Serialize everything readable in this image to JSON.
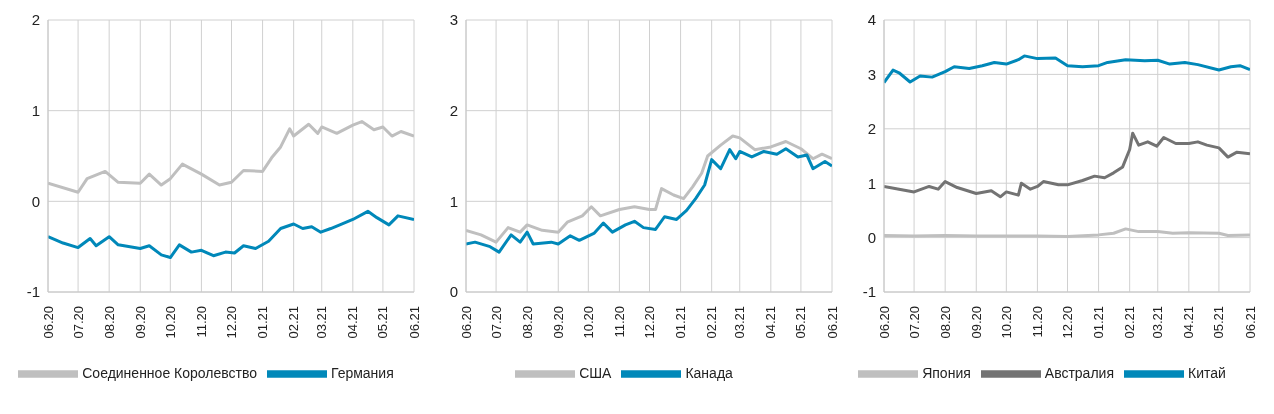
{
  "chart_data": [
    {
      "type": "line",
      "xlim": [
        "2020-06",
        "2021-06"
      ],
      "xticks": [
        {
          "value": "2020-06",
          "label": "06.20"
        },
        {
          "value": "2020-07",
          "label": "07.20"
        },
        {
          "value": "2020-08",
          "label": "08.20"
        },
        {
          "value": "2020-09",
          "label": "09.20"
        },
        {
          "value": "2020-10",
          "label": "10.20"
        },
        {
          "value": "2020-11",
          "label": "11.20"
        },
        {
          "value": "2020-12",
          "label": "12.20"
        },
        {
          "value": "2021-01",
          "label": "01.21"
        },
        {
          "value": "2021-02",
          "label": "02.21"
        },
        {
          "value": "2021-03",
          "label": "03.21"
        },
        {
          "value": "2021-04",
          "label": "04.21"
        },
        {
          "value": "2021-05",
          "label": "05.21"
        },
        {
          "value": "2021-06",
          "label": "06.21"
        }
      ],
      "ylim": [
        -1,
        2
      ],
      "yticks": [
        -1,
        0,
        1,
        2
      ],
      "grid": true,
      "legend": "bottom",
      "line_style": "solid",
      "series": [
        {
          "name": "Соединенное Королевство",
          "color": "#bfbfbf",
          "x": [
            "2020-06-01",
            "2020-07-01",
            "2020-07-10",
            "2020-07-28",
            "2020-08-10",
            "2020-09-01",
            "2020-09-10",
            "2020-09-22",
            "2020-10-01",
            "2020-10-13",
            "2020-11-01",
            "2020-11-19",
            "2020-12-01",
            "2020-12-13",
            "2021-01-01",
            "2021-01-10",
            "2021-01-19",
            "2021-01-28",
            "2021-02-01",
            "2021-02-16",
            "2021-02-25",
            "2021-03-01",
            "2021-03-16",
            "2021-04-01",
            "2021-04-10",
            "2021-04-22",
            "2021-05-01",
            "2021-05-10",
            "2021-05-19",
            "2021-06-01"
          ],
          "values": [
            0.2,
            0.1,
            0.25,
            0.33,
            0.21,
            0.2,
            0.3,
            0.18,
            0.25,
            0.41,
            0.3,
            0.18,
            0.21,
            0.34,
            0.33,
            0.48,
            0.6,
            0.8,
            0.72,
            0.85,
            0.75,
            0.82,
            0.75,
            0.84,
            0.88,
            0.79,
            0.82,
            0.72,
            0.77,
            0.72
          ]
        },
        {
          "name": "Германия",
          "color": "#0088b9",
          "x": [
            "2020-06-01",
            "2020-06-16",
            "2020-07-01",
            "2020-07-13",
            "2020-07-19",
            "2020-08-01",
            "2020-08-10",
            "2020-09-01",
            "2020-09-10",
            "2020-09-22",
            "2020-10-01",
            "2020-10-10",
            "2020-10-22",
            "2020-11-01",
            "2020-11-13",
            "2020-11-25",
            "2020-12-04",
            "2020-12-13",
            "2020-12-25",
            "2021-01-07",
            "2021-01-19",
            "2021-02-01",
            "2021-02-10",
            "2021-02-19",
            "2021-02-28",
            "2021-03-10",
            "2021-03-19",
            "2021-04-01",
            "2021-04-16",
            "2021-04-25",
            "2021-05-07",
            "2021-05-16",
            "2021-06-01"
          ],
          "values": [
            -0.39,
            -0.46,
            -0.51,
            -0.41,
            -0.49,
            -0.39,
            -0.48,
            -0.52,
            -0.49,
            -0.59,
            -0.62,
            -0.48,
            -0.56,
            -0.54,
            -0.6,
            -0.56,
            -0.57,
            -0.49,
            -0.52,
            -0.44,
            -0.3,
            -0.25,
            -0.3,
            -0.28,
            -0.34,
            -0.3,
            -0.26,
            -0.2,
            -0.11,
            -0.18,
            -0.26,
            -0.16,
            -0.2
          ]
        }
      ]
    },
    {
      "type": "line",
      "xlim": [
        "2020-06",
        "2021-06"
      ],
      "xticks": [
        {
          "value": "2020-06",
          "label": "06.20"
        },
        {
          "value": "2020-07",
          "label": "07.20"
        },
        {
          "value": "2020-08",
          "label": "08.20"
        },
        {
          "value": "2020-09",
          "label": "09.20"
        },
        {
          "value": "2020-10",
          "label": "10.20"
        },
        {
          "value": "2020-11",
          "label": "11.20"
        },
        {
          "value": "2020-12",
          "label": "12.20"
        },
        {
          "value": "2021-01",
          "label": "01.21"
        },
        {
          "value": "2021-02",
          "label": "02.21"
        },
        {
          "value": "2021-03",
          "label": "03.21"
        },
        {
          "value": "2021-04",
          "label": "04.21"
        },
        {
          "value": "2021-05",
          "label": "05.21"
        },
        {
          "value": "2021-06",
          "label": "06.21"
        }
      ],
      "ylim": [
        0,
        3
      ],
      "yticks": [
        0,
        1,
        2,
        3
      ],
      "grid": true,
      "legend": "bottom",
      "line_style": "solid",
      "series": [
        {
          "name": "США",
          "color": "#bfbfbf",
          "x": [
            "2020-06-01",
            "2020-06-16",
            "2020-07-01",
            "2020-07-13",
            "2020-07-25",
            "2020-08-01",
            "2020-08-16",
            "2020-09-01",
            "2020-09-10",
            "2020-09-25",
            "2020-10-04",
            "2020-10-13",
            "2020-11-01",
            "2020-11-16",
            "2020-12-01",
            "2020-12-07",
            "2020-12-13",
            "2020-12-25",
            "2021-01-04",
            "2021-01-13",
            "2021-01-22",
            "2021-01-28",
            "2021-02-10",
            "2021-02-22",
            "2021-03-01",
            "2021-03-16",
            "2021-04-01",
            "2021-04-16",
            "2021-05-01",
            "2021-05-13",
            "2021-05-22",
            "2021-06-01"
          ],
          "values": [
            0.68,
            0.63,
            0.55,
            0.71,
            0.66,
            0.74,
            0.68,
            0.66,
            0.77,
            0.84,
            0.94,
            0.84,
            0.91,
            0.94,
            0.91,
            0.91,
            1.14,
            1.07,
            1.03,
            1.16,
            1.31,
            1.5,
            1.62,
            1.72,
            1.7,
            1.57,
            1.6,
            1.66,
            1.58,
            1.47,
            1.52,
            1.47
          ]
        },
        {
          "name": "Канада",
          "color": "#0088b9",
          "x": [
            "2020-06-01",
            "2020-06-10",
            "2020-06-25",
            "2020-07-04",
            "2020-07-16",
            "2020-07-25",
            "2020-08-01",
            "2020-08-07",
            "2020-08-25",
            "2020-09-01",
            "2020-09-13",
            "2020-09-22",
            "2020-10-07",
            "2020-10-16",
            "2020-10-25",
            "2020-11-07",
            "2020-11-16",
            "2020-11-25",
            "2020-12-07",
            "2020-12-16",
            "2020-12-28",
            "2021-01-07",
            "2021-01-16",
            "2021-01-25",
            "2021-02-01",
            "2021-02-10",
            "2021-02-19",
            "2021-02-25",
            "2021-03-01",
            "2021-03-13",
            "2021-03-25",
            "2021-04-07",
            "2021-04-16",
            "2021-04-28",
            "2021-05-07",
            "2021-05-13",
            "2021-05-25",
            "2021-06-01"
          ],
          "values": [
            0.53,
            0.55,
            0.5,
            0.44,
            0.63,
            0.55,
            0.66,
            0.53,
            0.55,
            0.53,
            0.62,
            0.57,
            0.65,
            0.76,
            0.66,
            0.74,
            0.78,
            0.71,
            0.69,
            0.83,
            0.8,
            0.9,
            1.03,
            1.18,
            1.46,
            1.36,
            1.57,
            1.47,
            1.55,
            1.49,
            1.55,
            1.52,
            1.58,
            1.49,
            1.51,
            1.36,
            1.44,
            1.39
          ]
        }
      ]
    },
    {
      "type": "line",
      "xlim": [
        "2020-06",
        "2021-06"
      ],
      "xticks": [
        {
          "value": "2020-06",
          "label": "06.20"
        },
        {
          "value": "2020-07",
          "label": "07.20"
        },
        {
          "value": "2020-08",
          "label": "08.20"
        },
        {
          "value": "2020-09",
          "label": "09.20"
        },
        {
          "value": "2020-10",
          "label": "10.20"
        },
        {
          "value": "2020-11",
          "label": "11.20"
        },
        {
          "value": "2020-12",
          "label": "12.20"
        },
        {
          "value": "2021-01",
          "label": "01.21"
        },
        {
          "value": "2021-02",
          "label": "02.21"
        },
        {
          "value": "2021-03",
          "label": "03.21"
        },
        {
          "value": "2021-04",
          "label": "04.21"
        },
        {
          "value": "2021-05",
          "label": "05.21"
        },
        {
          "value": "2021-06",
          "label": "06.21"
        }
      ],
      "ylim": [
        -1,
        4
      ],
      "yticks": [
        -1,
        0,
        1,
        2,
        3,
        4
      ],
      "grid": true,
      "legend": "bottom",
      "line_style": "solid",
      "series": [
        {
          "name": "Япония",
          "color": "#bfbfbf",
          "x": [
            "2020-06-01",
            "2020-07-01",
            "2020-08-01",
            "2020-09-01",
            "2020-10-01",
            "2020-11-01",
            "2020-12-01",
            "2021-01-01",
            "2021-01-16",
            "2021-01-28",
            "2021-02-10",
            "2021-03-01",
            "2021-03-16",
            "2021-04-01",
            "2021-05-01",
            "2021-05-10",
            "2021-06-01"
          ],
          "values": [
            0.04,
            0.03,
            0.04,
            0.03,
            0.03,
            0.03,
            0.02,
            0.05,
            0.08,
            0.16,
            0.11,
            0.11,
            0.08,
            0.09,
            0.08,
            0.04,
            0.05
          ]
        },
        {
          "name": "Австралия",
          "color": "#737373",
          "x": [
            "2020-06-01",
            "2020-06-16",
            "2020-07-01",
            "2020-07-16",
            "2020-07-25",
            "2020-08-01",
            "2020-08-13",
            "2020-09-01",
            "2020-09-16",
            "2020-09-25",
            "2020-10-01",
            "2020-10-13",
            "2020-10-16",
            "2020-10-25",
            "2020-11-01",
            "2020-11-07",
            "2020-11-22",
            "2020-12-01",
            "2020-12-16",
            "2020-12-28",
            "2021-01-07",
            "2021-01-16",
            "2021-01-25",
            "2021-02-01",
            "2021-02-04",
            "2021-02-10",
            "2021-02-19",
            "2021-02-28",
            "2021-03-07",
            "2021-03-19",
            "2021-04-01",
            "2021-04-10",
            "2021-04-19",
            "2021-05-01",
            "2021-05-10",
            "2021-05-19",
            "2021-06-01"
          ],
          "values": [
            0.94,
            0.89,
            0.84,
            0.94,
            0.89,
            1.03,
            0.92,
            0.81,
            0.86,
            0.75,
            0.84,
            0.78,
            1.0,
            0.89,
            0.94,
            1.03,
            0.97,
            0.97,
            1.05,
            1.13,
            1.1,
            1.19,
            1.3,
            1.62,
            1.92,
            1.7,
            1.76,
            1.68,
            1.84,
            1.73,
            1.73,
            1.76,
            1.7,
            1.65,
            1.48,
            1.57,
            1.54
          ]
        },
        {
          "name": "Китай",
          "color": "#0088b9",
          "x": [
            "2020-06-01",
            "2020-06-10",
            "2020-06-16",
            "2020-06-27",
            "2020-07-07",
            "2020-07-19",
            "2020-08-01",
            "2020-08-10",
            "2020-08-25",
            "2020-09-07",
            "2020-09-19",
            "2020-10-01",
            "2020-10-13",
            "2020-10-19",
            "2020-11-01",
            "2020-11-19",
            "2020-12-01",
            "2020-12-16",
            "2021-01-01",
            "2021-01-10",
            "2021-01-28",
            "2021-02-16",
            "2021-03-01",
            "2021-03-13",
            "2021-03-28",
            "2021-04-10",
            "2021-05-01",
            "2021-05-13",
            "2021-05-22",
            "2021-06-01"
          ],
          "values": [
            2.85,
            3.08,
            3.03,
            2.86,
            2.97,
            2.95,
            3.05,
            3.14,
            3.11,
            3.16,
            3.22,
            3.19,
            3.27,
            3.34,
            3.29,
            3.3,
            3.16,
            3.14,
            3.16,
            3.22,
            3.27,
            3.25,
            3.26,
            3.19,
            3.22,
            3.18,
            3.08,
            3.14,
            3.16,
            3.09
          ]
        }
      ]
    }
  ]
}
